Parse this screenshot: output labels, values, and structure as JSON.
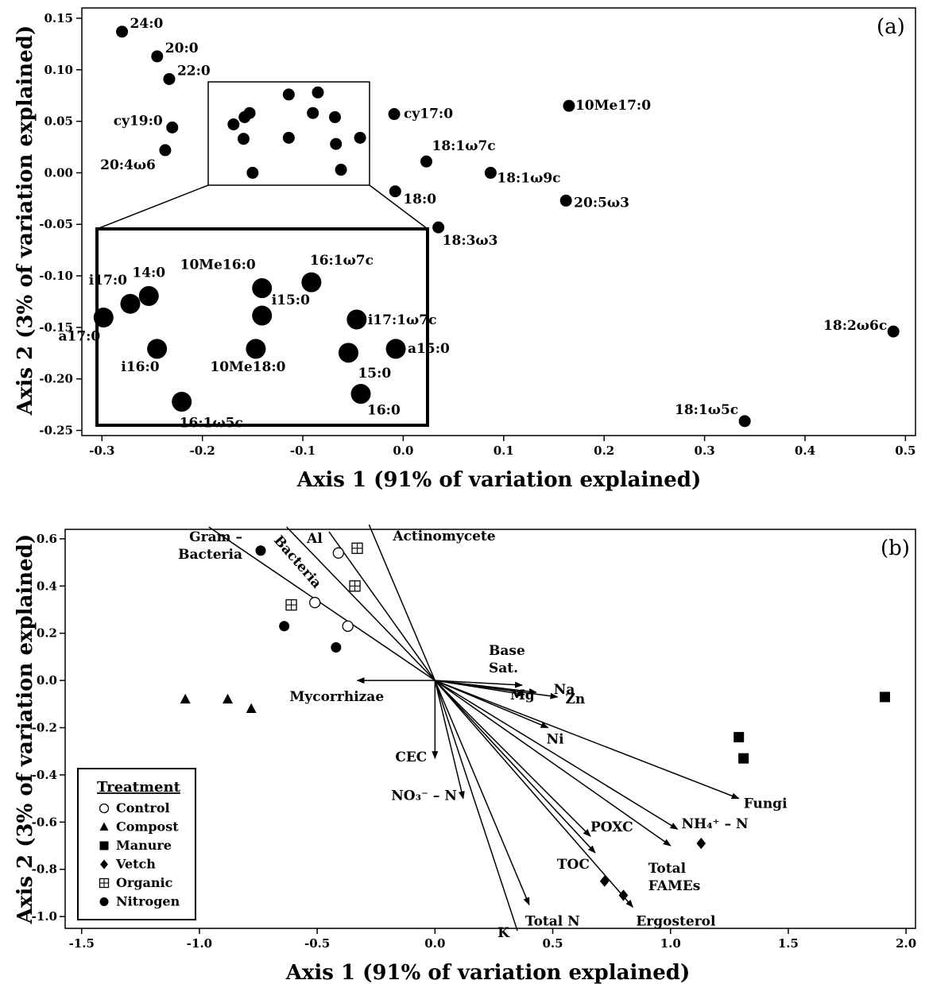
{
  "chart_data": [
    {
      "type": "scatter",
      "panel_label": "(a)",
      "xlabel": "Axis 1 (91% of variation explained)",
      "ylabel": "Axis 2 (3% of variation explained)",
      "xlim": [
        -0.32,
        0.51
      ],
      "ylim": [
        -0.255,
        0.16
      ],
      "xticks": [
        "-0.3",
        "-0.2",
        "-0.1",
        "0.0",
        "0.1",
        "0.2",
        "0.3",
        "0.4",
        "0.5"
      ],
      "yticks": [
        "0.15",
        "0.10",
        "0.05",
        "0.00",
        "-0.05",
        "-0.10",
        "-0.15",
        "-0.20",
        "-0.25"
      ],
      "points": [
        {
          "name": "24:0",
          "x": -0.28,
          "y": 0.137
        },
        {
          "name": "20:0",
          "x": -0.245,
          "y": 0.113
        },
        {
          "name": "22:0",
          "x": -0.233,
          "y": 0.091
        },
        {
          "name": "cy19:0",
          "x": -0.23,
          "y": 0.044
        },
        {
          "name": "20:4ω6",
          "x": -0.237,
          "y": 0.022
        },
        {
          "name": "cy17:0",
          "x": -0.009,
          "y": 0.057
        },
        {
          "name": "10Me17:0",
          "x": 0.165,
          "y": 0.065
        },
        {
          "name": "18:1ω7c",
          "x": 0.023,
          "y": 0.011
        },
        {
          "name": "18:1ω9c",
          "x": 0.087,
          "y": 0.0
        },
        {
          "name": "18:0",
          "x": -0.008,
          "y": -0.018
        },
        {
          "name": "20:5ω3",
          "x": 0.162,
          "y": -0.027
        },
        {
          "name": "18:3ω3",
          "x": 0.035,
          "y": -0.053
        },
        {
          "name": "18:2ω6c",
          "x": 0.488,
          "y": -0.154
        },
        {
          "name": "18:1ω5c",
          "x": 0.34,
          "y": -0.241
        }
      ],
      "cluster_points": [
        {
          "x": -0.169,
          "y": 0.047
        },
        {
          "x": -0.158,
          "y": 0.054
        },
        {
          "x": -0.153,
          "y": 0.058
        },
        {
          "x": -0.159,
          "y": 0.033
        },
        {
          "x": -0.15,
          "y": 0.0
        },
        {
          "x": -0.114,
          "y": 0.076
        },
        {
          "x": -0.114,
          "y": 0.034
        },
        {
          "x": -0.09,
          "y": 0.058
        },
        {
          "x": -0.085,
          "y": 0.078
        },
        {
          "x": -0.068,
          "y": 0.054
        },
        {
          "x": -0.067,
          "y": 0.028
        },
        {
          "x": -0.062,
          "y": 0.003
        },
        {
          "x": -0.043,
          "y": 0.034
        }
      ],
      "inset_points": [
        {
          "name": "10Me16:0"
        },
        {
          "name": "16:1ω7c"
        },
        {
          "name": "14:0"
        },
        {
          "name": "i15:0"
        },
        {
          "name": "i17:0"
        },
        {
          "name": "i17:1ω7c"
        },
        {
          "name": "a17:0"
        },
        {
          "name": "i16:0"
        },
        {
          "name": "10Me18:0"
        },
        {
          "name": "15:0"
        },
        {
          "name": "a15:0"
        },
        {
          "name": "16:1ω5c"
        },
        {
          "name": "16:0"
        }
      ]
    },
    {
      "type": "scatter",
      "panel_label": "(b)",
      "xlabel": "Axis 1 (91% of variation explained)",
      "ylabel": "Axis 2 (3% of variation explained)",
      "xlim": [
        -1.57,
        2.04
      ],
      "ylim": [
        -1.05,
        0.64
      ],
      "xticks": [
        "-1.5",
        "-1.0",
        "-0.5",
        "0.0",
        "0.5",
        "1.0",
        "1.5",
        "2.0"
      ],
      "yticks": [
        "0.6",
        "0.4",
        "0.2",
        "0.0",
        "-0.2",
        "-0.4",
        "-0.6",
        "-0.8",
        "-1.0"
      ],
      "legend": {
        "title": "Treatment",
        "position": "bottom-left",
        "entries": [
          {
            "name": "Control",
            "marker": "open-circle"
          },
          {
            "name": "Compost",
            "marker": "triangle"
          },
          {
            "name": "Manure",
            "marker": "square"
          },
          {
            "name": "Vetch",
            "marker": "diamond"
          },
          {
            "name": "Organic",
            "marker": "crossed-square"
          },
          {
            "name": "Nitrogen",
            "marker": "circle"
          }
        ]
      },
      "series": [
        {
          "name": "Control",
          "points": [
            [
              -0.41,
              0.54
            ],
            [
              -0.51,
              0.33
            ],
            [
              -0.37,
              0.23
            ]
          ]
        },
        {
          "name": "Compost",
          "points": [
            [
              -1.06,
              -0.08
            ],
            [
              -0.88,
              -0.08
            ],
            [
              -0.78,
              -0.12
            ]
          ]
        },
        {
          "name": "Manure",
          "points": [
            [
              1.91,
              -0.07
            ],
            [
              1.29,
              -0.24
            ],
            [
              1.31,
              -0.33
            ]
          ]
        },
        {
          "name": "Vetch",
          "points": [
            [
              1.13,
              -0.69
            ],
            [
              0.72,
              -0.85
            ],
            [
              0.8,
              -0.91
            ]
          ]
        },
        {
          "name": "Organic",
          "points": [
            [
              -0.33,
              0.56
            ],
            [
              -0.34,
              0.4
            ],
            [
              -0.61,
              0.32
            ]
          ]
        },
        {
          "name": "Nitrogen",
          "points": [
            [
              -0.74,
              0.55
            ],
            [
              -0.64,
              0.23
            ],
            [
              -0.42,
              0.14
            ]
          ]
        }
      ],
      "vectors": [
        {
          "name": "Gram – Bacteria",
          "x": -0.96,
          "y": 0.65
        },
        {
          "name": "Bacteria",
          "x": -0.63,
          "y": 0.65
        },
        {
          "name": "Al",
          "x": -0.45,
          "y": 0.63
        },
        {
          "name": "Actinomycete",
          "x": -0.28,
          "y": 0.66
        },
        {
          "name": "Base Sat.",
          "x": 0.37,
          "y": -0.02
        },
        {
          "name": "Na",
          "x": 0.43,
          "y": -0.05
        },
        {
          "name": "Mg",
          "x": 0.38,
          "y": -0.06
        },
        {
          "name": "Zn",
          "x": 0.52,
          "y": -0.07
        },
        {
          "name": "Ni",
          "x": 0.48,
          "y": -0.2
        },
        {
          "name": "Mycorrhizae",
          "x": -0.33,
          "y": 0.0
        },
        {
          "name": "CEC",
          "x": 0.0,
          "y": -0.33
        },
        {
          "name": "NO₃⁻ – N",
          "x": 0.12,
          "y": -0.5
        },
        {
          "name": "Fungi",
          "x": 1.29,
          "y": -0.5
        },
        {
          "name": "NH₄⁺ – N",
          "x": 1.03,
          "y": -0.63
        },
        {
          "name": "Total FAMEs",
          "x": 1.0,
          "y": -0.7
        },
        {
          "name": "POXC",
          "x": 0.66,
          "y": -0.66
        },
        {
          "name": "TOC",
          "x": 0.68,
          "y": -0.73
        },
        {
          "name": "Total N",
          "x": 0.4,
          "y": -0.95
        },
        {
          "name": "Ergosterol",
          "x": 0.84,
          "y": -0.96
        },
        {
          "name": "K",
          "x": 0.35,
          "y": -1.06
        }
      ]
    }
  ]
}
